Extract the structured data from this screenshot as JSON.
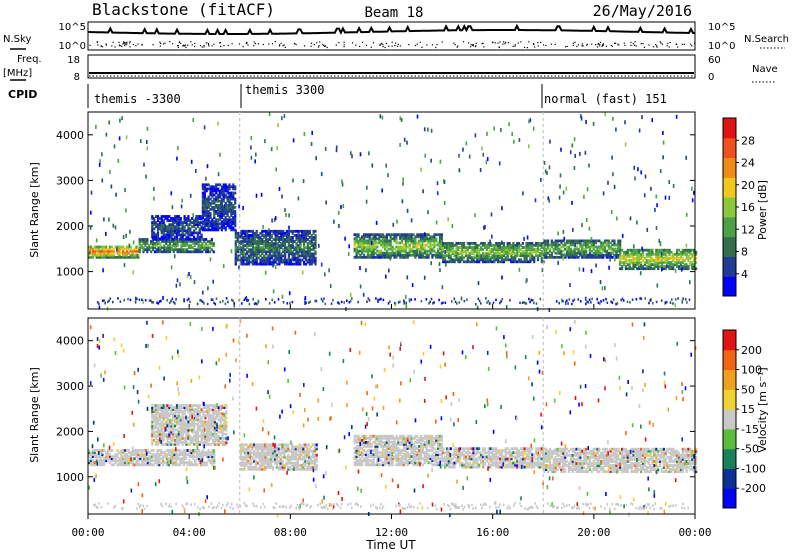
{
  "header": {
    "station": "Blackstone (fitACF)",
    "beam": "Beam 18",
    "date": "26/May/2016"
  },
  "top_panels": {
    "nsky_label": "N.Sky",
    "nsearch_label": "N.Search",
    "nsky_ticks": [
      "10^5",
      "10^0"
    ],
    "nsearch_ticks": [
      "10^5",
      "10^0"
    ],
    "freq_label": "Freq.",
    "freq_unit": "[MHz]",
    "freq_ticks": [
      "18",
      "8"
    ],
    "nave_label": "Nave",
    "nave_ticks": [
      "60",
      "0"
    ],
    "cpid_label": "CPID",
    "cpid_segments": [
      {
        "label": "themis -3300",
        "start_hour": 0
      },
      {
        "label": "themis 3300",
        "start_hour": 6
      },
      {
        "label": "normal (fast) 151",
        "start_hour": 18
      }
    ]
  },
  "time_axis": {
    "title": "Time UT",
    "ticks": [
      "00:00",
      "04:00",
      "08:00",
      "12:00",
      "16:00",
      "20:00",
      "00:00"
    ]
  },
  "colors": {
    "power_scale": [
      "#0000ff",
      "#223c96",
      "#336e50",
      "#4ca046",
      "#8cc83c",
      "#f0c81e",
      "#f08c14",
      "#f0501e",
      "#e11414"
    ],
    "velocity_scale": [
      "#0000ff",
      "#0a3296",
      "#19805a",
      "#5abe3c",
      "#c8c8c8",
      "#f0d232",
      "#f0a01e",
      "#f06414",
      "#e11414"
    ]
  },
  "chart_data": [
    {
      "type": "heatmap",
      "name": "power",
      "ylabel": "Slant Range [km]",
      "xlabel": "",
      "xlim": [
        0,
        24
      ],
      "ylim": [
        180,
        4500
      ],
      "yticks": [
        1000,
        2000,
        3000,
        4000
      ],
      "colorbar": {
        "label": "Power [dB]",
        "ticks": [
          4,
          8,
          12,
          16,
          20,
          24,
          28
        ],
        "range": [
          0,
          32
        ]
      },
      "bands": [
        {
          "t0": 0.0,
          "t1": 2.0,
          "r0": 1300,
          "r1": 1560,
          "v": 22
        },
        {
          "t0": 2.0,
          "t1": 5.0,
          "r0": 1420,
          "r1": 1700,
          "v": 12
        },
        {
          "t0": 2.5,
          "t1": 4.5,
          "r0": 1700,
          "r1": 2200,
          "v": 6
        },
        {
          "t0": 4.5,
          "t1": 5.8,
          "r0": 1900,
          "r1": 2900,
          "v": 6
        },
        {
          "t0": 5.8,
          "t1": 9.0,
          "r0": 1150,
          "r1": 1900,
          "v": 8
        },
        {
          "t0": 10.5,
          "t1": 14.0,
          "r0": 1300,
          "r1": 1800,
          "v": 14
        },
        {
          "t0": 14.0,
          "t1": 18.0,
          "r0": 1200,
          "r1": 1650,
          "v": 13
        },
        {
          "t0": 18.0,
          "t1": 21.0,
          "r0": 1300,
          "r1": 1700,
          "v": 12
        },
        {
          "t0": 21.0,
          "t1": 24.0,
          "r0": 1050,
          "r1": 1500,
          "v": 16
        }
      ]
    },
    {
      "type": "heatmap",
      "name": "velocity",
      "ylabel": "Slant Range [km]",
      "xlabel": "Time UT",
      "xlim": [
        0,
        24
      ],
      "ylim": [
        180,
        4500
      ],
      "yticks": [
        1000,
        2000,
        3000,
        4000
      ],
      "colorbar": {
        "label": "Velocity [m s⁻¹]",
        "ticks": [
          200,
          100,
          50,
          15,
          -15,
          -50,
          -100,
          -200
        ],
        "range": [
          -250,
          250
        ]
      },
      "bands": [
        {
          "t0": 0.0,
          "t1": 5.0,
          "r0": 1250,
          "r1": 1600,
          "v": 0
        },
        {
          "t0": 2.5,
          "t1": 5.5,
          "r0": 1700,
          "r1": 2600,
          "v": -30
        },
        {
          "t0": 6.0,
          "t1": 9.0,
          "r0": 1150,
          "r1": 1700,
          "v": 0
        },
        {
          "t0": 10.5,
          "t1": 14.0,
          "r0": 1250,
          "r1": 1900,
          "v": 5
        },
        {
          "t0": 14.0,
          "t1": 18.0,
          "r0": 1200,
          "r1": 1650,
          "v": 0
        },
        {
          "t0": 18.0,
          "t1": 24.0,
          "r0": 1100,
          "r1": 1600,
          "v": 0
        }
      ]
    }
  ]
}
